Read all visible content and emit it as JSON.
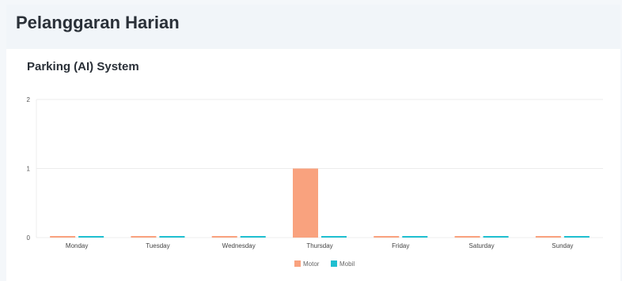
{
  "header": {
    "title": "Pelanggaran Harian"
  },
  "card": {
    "title": "Parking (AI) System"
  },
  "chart_data": {
    "type": "bar",
    "categories": [
      "Monday",
      "Tuesday",
      "Wednesday",
      "Thursday",
      "Friday",
      "Saturday",
      "Sunday"
    ],
    "series": [
      {
        "name": "Motor",
        "values": [
          0,
          0,
          0,
          1,
          0,
          0,
          0
        ],
        "color": "#f9a27e"
      },
      {
        "name": "Mobil",
        "values": [
          0,
          0,
          0,
          0,
          0,
          0,
          0
        ],
        "color": "#1fbfd0"
      }
    ],
    "yticks": [
      "0",
      "1",
      "2"
    ],
    "ylim": [
      0,
      2
    ],
    "grid": true,
    "legend_position": "bottom-center"
  }
}
